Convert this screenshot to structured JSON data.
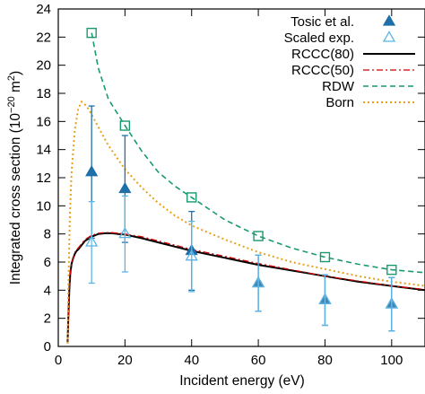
{
  "chart_data": {
    "type": "line",
    "xlabel": "Incident energy (eV)",
    "ylabel": {
      "prefix": "Integrated cross section (10",
      "exponent": "−20",
      "unit": " m",
      "unit_exponent": "2",
      "suffix": ")"
    },
    "xlim": [
      0,
      110
    ],
    "ylim": [
      0,
      24
    ],
    "xticks": [
      0,
      20,
      40,
      60,
      80,
      100
    ],
    "yticks": [
      0,
      2,
      4,
      6,
      8,
      10,
      12,
      14,
      16,
      18,
      20,
      22,
      24
    ],
    "grid": false,
    "legend_position": "top-right",
    "colors": {
      "tosic": "#1f6fa8",
      "scaled": "#5ab4e6",
      "rccc80": "#000000",
      "rccc50": "#cc0000",
      "rdw": "#1a9a6c",
      "born": "#e8a01c"
    },
    "series": [
      {
        "name": "Tosic et al.",
        "kind": "points",
        "marker": "filled-triangle",
        "x": [
          10,
          20,
          40,
          60,
          80,
          100
        ],
        "y": [
          12.4,
          11.2,
          6.8,
          4.5,
          3.3,
          3.0
        ],
        "yerr": [
          4.7,
          3.8,
          2.8,
          2.0,
          1.8,
          1.9
        ]
      },
      {
        "name": "Scaled exp.",
        "kind": "points",
        "marker": "open-triangle",
        "x": [
          10,
          20,
          40,
          60,
          80,
          100
        ],
        "y": [
          7.4,
          8.0,
          6.4,
          4.5,
          3.3,
          3.0
        ],
        "yerr": [
          2.9,
          2.7,
          2.5,
          2.0,
          1.8,
          1.9
        ]
      },
      {
        "name": "RCCC(80)",
        "kind": "line",
        "style": "solid",
        "x": [
          2.8,
          3.0,
          3.3,
          3.6,
          4.0,
          4.5,
          5.0,
          5.5,
          6.0,
          7.0,
          8.0,
          10.0,
          12.0,
          14.0,
          16.0,
          18.0,
          20.0,
          25.0,
          30.0,
          35.0,
          40.0,
          50.0,
          60.0,
          70.0,
          80.0,
          90.0,
          100.0,
          110.0
        ],
        "y": [
          0.3,
          2.0,
          4.0,
          5.2,
          5.9,
          6.3,
          6.6,
          6.8,
          6.9,
          7.2,
          7.5,
          7.8,
          8.0,
          8.05,
          8.05,
          8.0,
          7.95,
          7.7,
          7.4,
          7.1,
          6.8,
          6.3,
          5.8,
          5.4,
          5.0,
          4.6,
          4.3,
          4.0
        ]
      },
      {
        "name": "RCCC(50)",
        "kind": "line",
        "style": "dash-dot",
        "x": [
          2.8,
          3.0,
          3.3,
          3.6,
          4.0,
          4.5,
          5.0,
          5.5,
          6.0,
          7.0,
          8.0,
          10.0,
          12.0,
          14.0,
          16.0,
          18.0,
          20.0,
          25.0,
          30.0,
          35.0,
          40.0,
          50.0,
          60.0,
          70.0,
          80.0,
          90.0,
          100.0,
          110.0
        ],
        "y": [
          0.3,
          2.0,
          4.0,
          5.2,
          5.9,
          6.3,
          6.7,
          6.9,
          7.0,
          7.3,
          7.6,
          7.9,
          8.05,
          8.1,
          8.1,
          8.05,
          8.0,
          7.8,
          7.5,
          7.2,
          6.9,
          6.4,
          5.9,
          5.45,
          5.0,
          4.65,
          4.3,
          4.05
        ]
      },
      {
        "name": "RDW",
        "kind": "line",
        "style": "dashed",
        "marker": "open-square",
        "marker_x": [
          10,
          20,
          40,
          60,
          80,
          100
        ],
        "x": [
          10,
          12,
          15,
          20,
          25,
          30,
          35,
          40,
          50,
          60,
          70,
          80,
          90,
          100,
          110
        ],
        "y": [
          22.3,
          19.8,
          17.6,
          15.7,
          13.9,
          12.4,
          11.4,
          10.6,
          9.0,
          7.85,
          7.0,
          6.35,
          5.85,
          5.45,
          5.25
        ]
      },
      {
        "name": "Born",
        "kind": "line",
        "style": "dotted",
        "x": [
          2.8,
          3.0,
          3.5,
          4.0,
          5.0,
          6.0,
          7.0,
          8.0,
          9.0,
          10.0,
          12.0,
          15.0,
          20.0,
          25.0,
          30.0,
          35.0,
          40.0,
          50.0,
          60.0,
          70.0,
          80.0,
          90.0,
          100.0,
          110.0
        ],
        "y": [
          0.2,
          4.0,
          9.5,
          12.5,
          15.5,
          16.9,
          17.4,
          17.2,
          16.9,
          16.5,
          15.6,
          14.3,
          12.6,
          11.3,
          10.2,
          9.3,
          8.6,
          7.6,
          6.7,
          6.0,
          5.5,
          5.0,
          4.6,
          4.3
        ]
      }
    ]
  }
}
